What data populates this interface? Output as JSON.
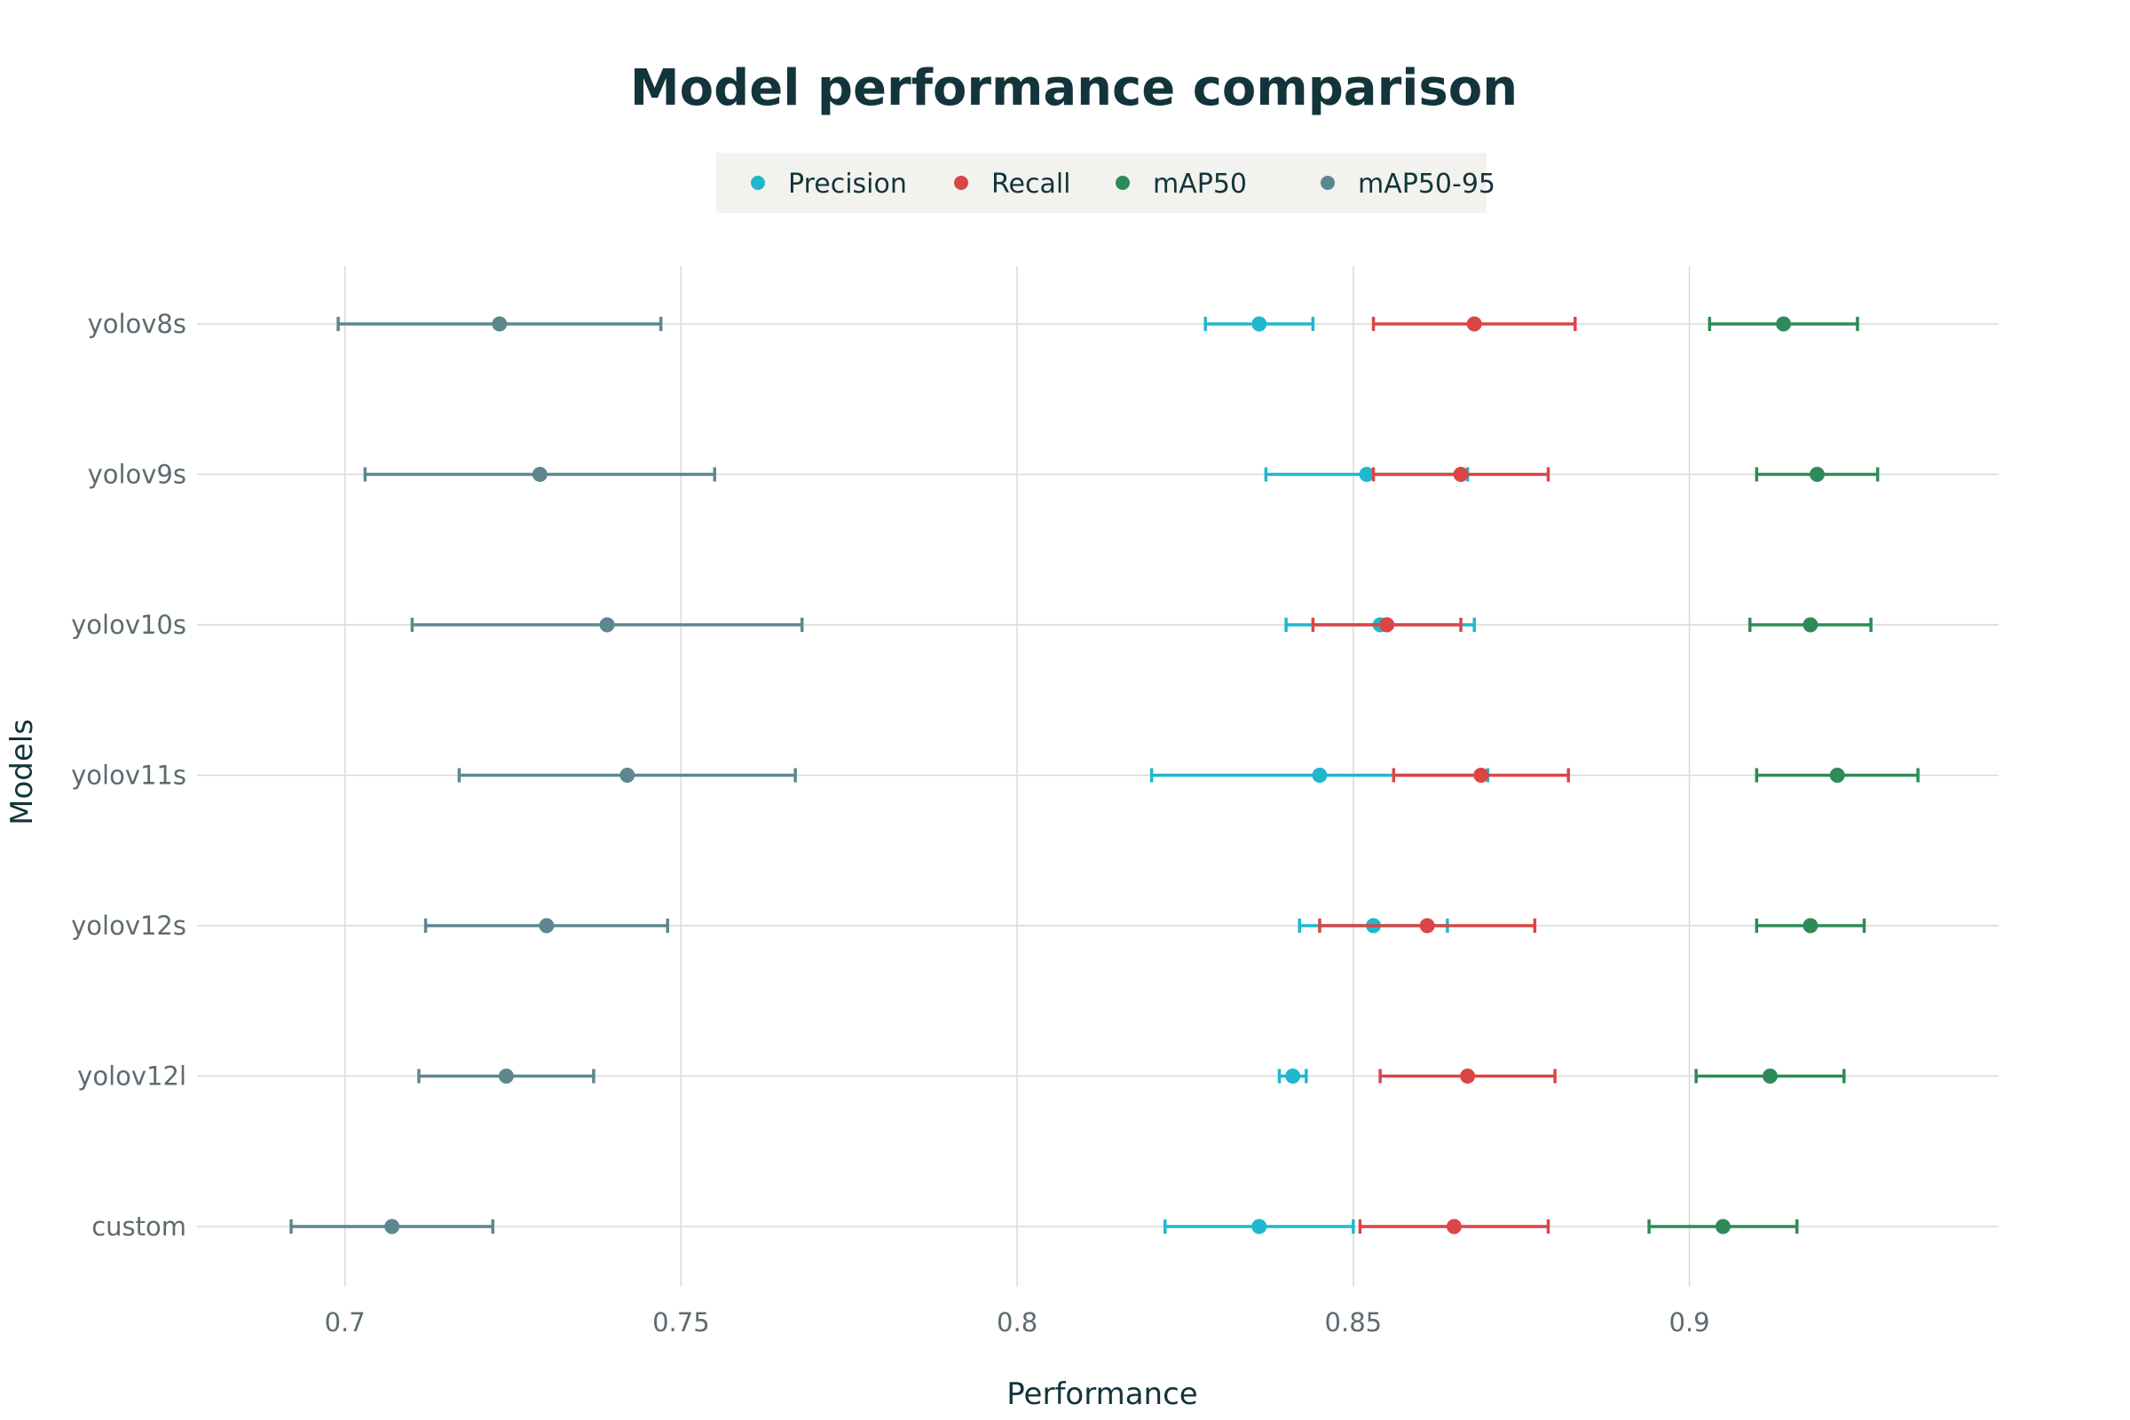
{
  "chart_data": {
    "type": "scatter",
    "title": "Model performance comparison",
    "xlabel": "Performance",
    "ylabel": "Models",
    "xlim": [
      0.678,
      0.946
    ],
    "x_ticks": [
      0.7,
      0.75,
      0.8,
      0.85,
      0.9
    ],
    "x_tick_labels": [
      "0.7",
      "0.75",
      "0.8",
      "0.85",
      "0.9"
    ],
    "grid": true,
    "legend_position": "top-center",
    "categories": [
      "yolov8s",
      "yolov9s",
      "yolov10s",
      "yolov11s",
      "yolov12s",
      "yolov12l",
      "custom"
    ],
    "series": [
      {
        "name": "Precision",
        "color": "#1fb8cd",
        "values": [
          0.836,
          0.852,
          0.854,
          0.845,
          0.853,
          0.841,
          0.836
        ],
        "error": [
          0.008,
          0.015,
          0.014,
          0.025,
          0.011,
          0.002,
          0.014
        ]
      },
      {
        "name": "Recall",
        "color": "#db4545",
        "values": [
          0.868,
          0.866,
          0.855,
          0.869,
          0.861,
          0.867,
          0.865
        ],
        "error": [
          0.015,
          0.013,
          0.011,
          0.013,
          0.016,
          0.013,
          0.014
        ]
      },
      {
        "name": "mAP50",
        "color": "#2e8b57",
        "values": [
          0.914,
          0.919,
          0.918,
          0.922,
          0.918,
          0.912,
          0.905
        ],
        "error": [
          0.011,
          0.009,
          0.009,
          0.012,
          0.008,
          0.011,
          0.011
        ]
      },
      {
        "name": "mAP50-95",
        "color": "#5d878f",
        "values": [
          0.723,
          0.729,
          0.739,
          0.742,
          0.73,
          0.724,
          0.707
        ],
        "error": [
          0.024,
          0.026,
          0.029,
          0.025,
          0.018,
          0.013,
          0.015
        ]
      }
    ]
  }
}
